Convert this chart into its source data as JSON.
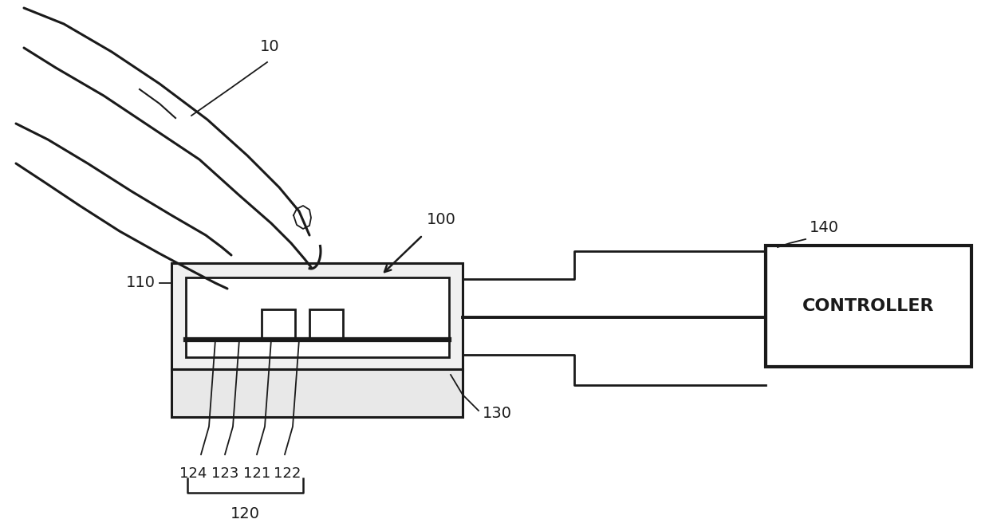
{
  "bg_color": "#ffffff",
  "line_color": "#1a1a1a",
  "fig_width": 12.4,
  "fig_height": 6.66,
  "dpi": 100
}
